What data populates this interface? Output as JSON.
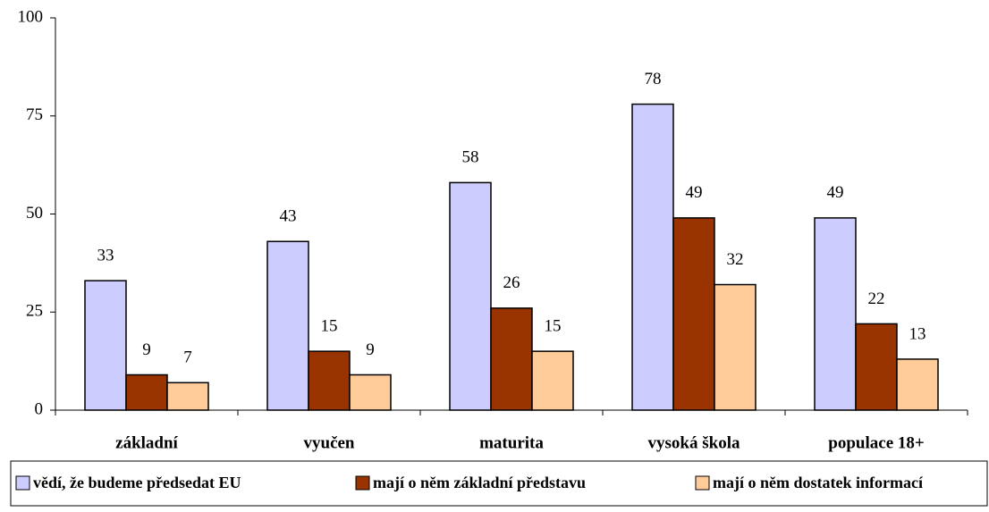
{
  "chart_data": {
    "type": "bar",
    "categories": [
      "základní",
      "vyučen",
      "maturita",
      "vysoká škola",
      "populace 18+"
    ],
    "series": [
      {
        "name": "vědí, že budeme předsedat EU",
        "color": "#ccccff",
        "values": [
          33,
          43,
          58,
          78,
          49
        ]
      },
      {
        "name": "mají o něm základní představu",
        "color": "#993300",
        "values": [
          9,
          15,
          26,
          49,
          22
        ]
      },
      {
        "name": "mají o něm dostatek informací",
        "color": "#ffcc99",
        "values": [
          7,
          9,
          15,
          32,
          13
        ]
      }
    ],
    "ylim": [
      0,
      100
    ],
    "yticks": [
      0,
      25,
      50,
      75,
      100
    ],
    "legend": "bottom"
  }
}
